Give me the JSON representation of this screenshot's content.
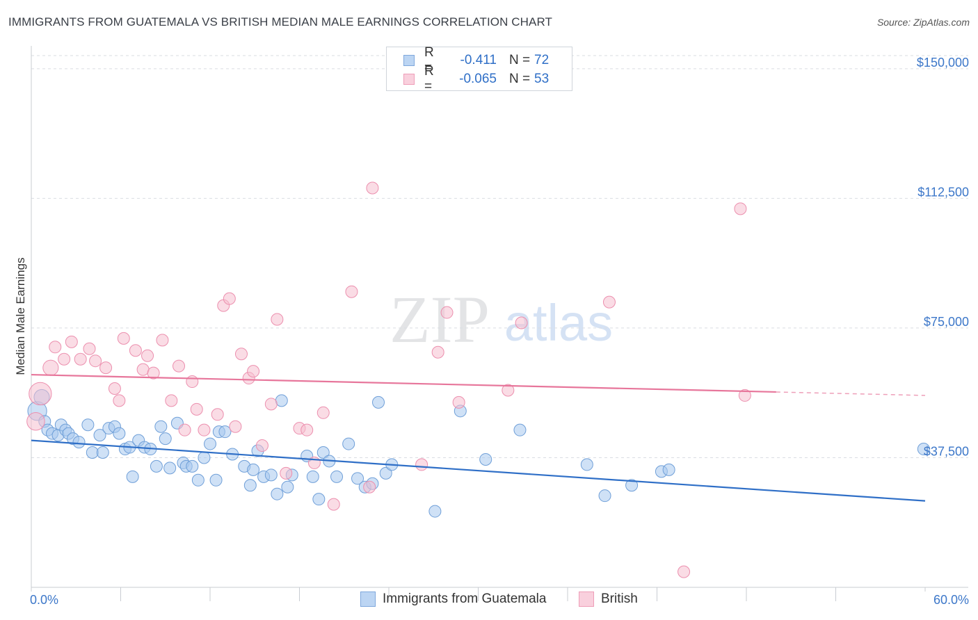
{
  "title": "IMMIGRANTS FROM GUATEMALA VS BRITISH MEDIAN MALE EARNINGS CORRELATION CHART",
  "source": "Source: ZipAtlas.com",
  "watermark": {
    "zip": "ZIP",
    "atlas": "atlas"
  },
  "legend": {
    "rows": [
      {
        "r_label": "R =",
        "r_value": "-0.411",
        "n_label": "N =",
        "n_value": "72"
      },
      {
        "r_label": "R =",
        "r_value": "-0.065",
        "n_label": "N =",
        "n_value": "53"
      }
    ]
  },
  "colors": {
    "guatemala_fill": "#a8c8ef",
    "guatemala_stroke": "#6f9fd8",
    "guatemala_line": "#2f6fc7",
    "british_fill": "#f6bfd0",
    "british_stroke": "#ec8fae",
    "british_line": "#e7769b",
    "tick_text": "#3c77c9",
    "grid": "#d9dde2"
  },
  "chart_data": {
    "type": "scatter",
    "xlabel": "",
    "ylabel": "Median Male Earnings",
    "xlim": [
      0,
      60
    ],
    "ylim": [
      0,
      155000
    ],
    "x_tick_labels": {
      "left": "0.0%",
      "right": "60.0%"
    },
    "y_ticks": [
      {
        "value": 37500,
        "label": "$37,500"
      },
      {
        "value": 75000,
        "label": "$75,000"
      },
      {
        "value": 112500,
        "label": "$112,500"
      },
      {
        "value": 150000,
        "label": "$150,000"
      }
    ],
    "series": [
      {
        "name": "Immigrants from Guatemala",
        "trend": {
          "x0": 0,
          "y0": 42500,
          "x1": 60,
          "y1": 25000,
          "solid_until": 60
        },
        "points": [
          [
            0.4,
            51000,
            1.6
          ],
          [
            0.7,
            55000,
            1.3
          ],
          [
            0.9,
            48000,
            1
          ],
          [
            1.1,
            45500,
            1
          ],
          [
            1.4,
            44500,
            1
          ],
          [
            1.8,
            44000,
            1
          ],
          [
            2.0,
            47000,
            1
          ],
          [
            2.3,
            45500,
            1
          ],
          [
            2.5,
            44500,
            1
          ],
          [
            2.8,
            43000,
            1
          ],
          [
            3.2,
            42000,
            1
          ],
          [
            3.8,
            47000,
            1
          ],
          [
            4.1,
            39000,
            1
          ],
          [
            4.6,
            44000,
            1
          ],
          [
            4.8,
            39000,
            1
          ],
          [
            5.2,
            46000,
            1
          ],
          [
            5.6,
            46500,
            1
          ],
          [
            5.9,
            44500,
            1
          ],
          [
            6.3,
            40000,
            1
          ],
          [
            6.6,
            40500,
            1
          ],
          [
            6.8,
            32000,
            1
          ],
          [
            7.2,
            42500,
            1
          ],
          [
            7.6,
            40500,
            1
          ],
          [
            8.0,
            40000,
            1
          ],
          [
            8.4,
            35000,
            1
          ],
          [
            8.7,
            46500,
            1
          ],
          [
            9.0,
            43000,
            1
          ],
          [
            9.3,
            34500,
            1
          ],
          [
            9.8,
            47500,
            1
          ],
          [
            10.2,
            36000,
            1
          ],
          [
            10.4,
            35000,
            1
          ],
          [
            10.8,
            35000,
            1
          ],
          [
            11.2,
            31000,
            1
          ],
          [
            11.6,
            37500,
            1
          ],
          [
            12.0,
            41500,
            1
          ],
          [
            12.4,
            31000,
            1
          ],
          [
            12.6,
            45000,
            1
          ],
          [
            13.0,
            45000,
            1
          ],
          [
            13.5,
            38500,
            1
          ],
          [
            14.3,
            35000,
            1
          ],
          [
            14.7,
            29500,
            1
          ],
          [
            14.9,
            34000,
            1
          ],
          [
            15.2,
            39500,
            1
          ],
          [
            15.6,
            32000,
            1
          ],
          [
            16.1,
            32500,
            1
          ],
          [
            16.5,
            27000,
            1
          ],
          [
            16.8,
            54000,
            1
          ],
          [
            17.2,
            29000,
            1
          ],
          [
            17.5,
            32500,
            1
          ],
          [
            18.5,
            38000,
            1
          ],
          [
            18.9,
            32000,
            1
          ],
          [
            19.3,
            25500,
            1
          ],
          [
            19.6,
            39000,
            1
          ],
          [
            20.0,
            36500,
            1
          ],
          [
            20.5,
            32000,
            1
          ],
          [
            21.3,
            41500,
            1
          ],
          [
            21.9,
            31500,
            1
          ],
          [
            22.4,
            29000,
            1
          ],
          [
            22.9,
            30000,
            1
          ],
          [
            23.3,
            53500,
            1
          ],
          [
            23.8,
            33000,
            1
          ],
          [
            24.2,
            35500,
            1
          ],
          [
            27.1,
            22000,
            1
          ],
          [
            28.8,
            51000,
            1
          ],
          [
            30.5,
            37000,
            1
          ],
          [
            32.8,
            45500,
            1
          ],
          [
            37.3,
            35500,
            1
          ],
          [
            38.5,
            26500,
            1
          ],
          [
            40.3,
            29500,
            1
          ],
          [
            42.3,
            33500,
            1
          ],
          [
            42.8,
            34000,
            1
          ],
          [
            59.9,
            40000,
            1
          ]
        ]
      },
      {
        "name": "British",
        "trend": {
          "x0": 0,
          "y0": 61500,
          "x1": 60,
          "y1": 55500,
          "solid_until": 50
        },
        "points": [
          [
            0.3,
            48000,
            1.5
          ],
          [
            0.6,
            56000,
            1.9
          ],
          [
            1.3,
            63500,
            1.3
          ],
          [
            1.6,
            69500,
            1
          ],
          [
            2.2,
            66000,
            1
          ],
          [
            2.7,
            71000,
            1
          ],
          [
            3.3,
            66000,
            1
          ],
          [
            3.9,
            69000,
            1
          ],
          [
            4.3,
            65500,
            1
          ],
          [
            5.0,
            63500,
            1
          ],
          [
            5.6,
            57500,
            1
          ],
          [
            5.9,
            54000,
            1
          ],
          [
            6.2,
            72000,
            1
          ],
          [
            7.0,
            68500,
            1
          ],
          [
            7.5,
            63000,
            1
          ],
          [
            7.8,
            67000,
            1
          ],
          [
            8.2,
            62000,
            1
          ],
          [
            8.8,
            71500,
            1
          ],
          [
            9.4,
            54000,
            1
          ],
          [
            9.9,
            64000,
            1
          ],
          [
            10.3,
            45500,
            1
          ],
          [
            10.8,
            59500,
            1
          ],
          [
            11.1,
            51500,
            1
          ],
          [
            11.6,
            45500,
            1
          ],
          [
            12.5,
            50000,
            1
          ],
          [
            12.9,
            81500,
            1
          ],
          [
            13.3,
            83500,
            1
          ],
          [
            13.7,
            46500,
            1
          ],
          [
            14.1,
            67500,
            1
          ],
          [
            14.6,
            60500,
            1
          ],
          [
            14.9,
            62500,
            1
          ],
          [
            15.5,
            41000,
            1
          ],
          [
            16.1,
            53000,
            1
          ],
          [
            16.5,
            77500,
            1
          ],
          [
            17.1,
            33000,
            1
          ],
          [
            18.0,
            46000,
            1
          ],
          [
            18.5,
            45500,
            1
          ],
          [
            19.0,
            36000,
            1
          ],
          [
            19.6,
            50500,
            1
          ],
          [
            20.3,
            24000,
            1
          ],
          [
            21.5,
            85500,
            1
          ],
          [
            22.7,
            29000,
            1
          ],
          [
            22.9,
            115500,
            1
          ],
          [
            26.2,
            35500,
            1
          ],
          [
            27.3,
            68000,
            1
          ],
          [
            27.9,
            79500,
            1
          ],
          [
            28.7,
            53500,
            1
          ],
          [
            32.0,
            57000,
            1
          ],
          [
            32.9,
            76500,
            1
          ],
          [
            38.8,
            82500,
            1
          ],
          [
            43.8,
            4500,
            1
          ],
          [
            47.6,
            109500,
            1
          ],
          [
            47.9,
            55500,
            1
          ]
        ]
      }
    ]
  },
  "bottom_legend": {
    "series1": "Immigrants from Guatemala",
    "series2": "British"
  }
}
